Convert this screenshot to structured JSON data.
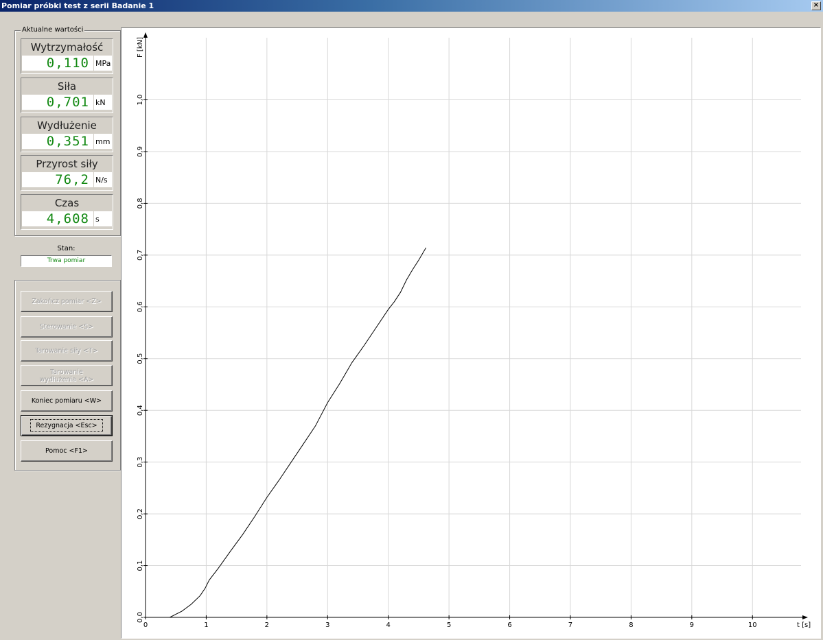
{
  "window": {
    "title": "Pomiar próbki test z serii Badanie 1",
    "close_glyph": "×"
  },
  "values_group": {
    "legend": "Aktualne wartości",
    "items": [
      {
        "label": "Wytrzymałość",
        "value": "0,110",
        "unit": "MPa"
      },
      {
        "label": "Siła",
        "value": "0,701",
        "unit": "kN"
      },
      {
        "label": "Wydłużenie",
        "value": "0,351",
        "unit": "mm"
      },
      {
        "label": "Przyrost siły",
        "value": "76,2",
        "unit": "N/s"
      },
      {
        "label": "Czas",
        "value": "4,608",
        "unit": "s"
      }
    ]
  },
  "status": {
    "label": "Stan:",
    "value": "Trwa pomiar"
  },
  "buttons": {
    "zakoncz": "Zakończ pomiar <Z>",
    "sterowanie": "Sterowanie <S>",
    "tarowanie_sily": "Tarowanie siły <T>",
    "tarowanie_wydluzenia": "Tarowanie wydłużenia <A>",
    "koniec": "Koniec pomiaru <W>",
    "rezygnacja": "Rezygnacja <Esc>",
    "pomoc": "Pomoc <F1>"
  },
  "colors": {
    "value_green": "#118811",
    "title_blue": "#0a246a"
  },
  "chart_data": {
    "type": "line",
    "xlabel": "t [s]",
    "ylabel": "F [kN]",
    "xlim": [
      0,
      10.8
    ],
    "ylim": [
      0,
      1.12
    ],
    "x_ticks": [
      0,
      1,
      2,
      3,
      4,
      5,
      6,
      7,
      8,
      9,
      10
    ],
    "y_ticks": [
      0.0,
      0.1,
      0.2,
      0.3,
      0.4,
      0.5,
      0.6,
      0.7,
      0.8,
      0.9,
      1.0
    ],
    "y_tick_labels": [
      "0,0",
      "0,1",
      "0,2",
      "0,3",
      "0,4",
      "0,5",
      "0,6",
      "0,7",
      "0,8",
      "0,9",
      "1,0"
    ],
    "grid": true,
    "series": [
      {
        "x": [
          0.4,
          0.6,
          0.75,
          0.9,
          0.98,
          1.05,
          1.2,
          1.4,
          1.6,
          1.8,
          2.0,
          2.2,
          2.4,
          2.6,
          2.8,
          3.0,
          3.2,
          3.4,
          3.6,
          3.8,
          4.0,
          4.1,
          4.2,
          4.3,
          4.4,
          4.5,
          4.62
        ],
        "y": [
          0.0,
          0.012,
          0.025,
          0.042,
          0.056,
          0.072,
          0.095,
          0.128,
          0.16,
          0.195,
          0.232,
          0.265,
          0.3,
          0.335,
          0.37,
          0.415,
          0.452,
          0.492,
          0.525,
          0.56,
          0.595,
          0.61,
          0.628,
          0.652,
          0.672,
          0.69,
          0.714
        ]
      }
    ]
  }
}
